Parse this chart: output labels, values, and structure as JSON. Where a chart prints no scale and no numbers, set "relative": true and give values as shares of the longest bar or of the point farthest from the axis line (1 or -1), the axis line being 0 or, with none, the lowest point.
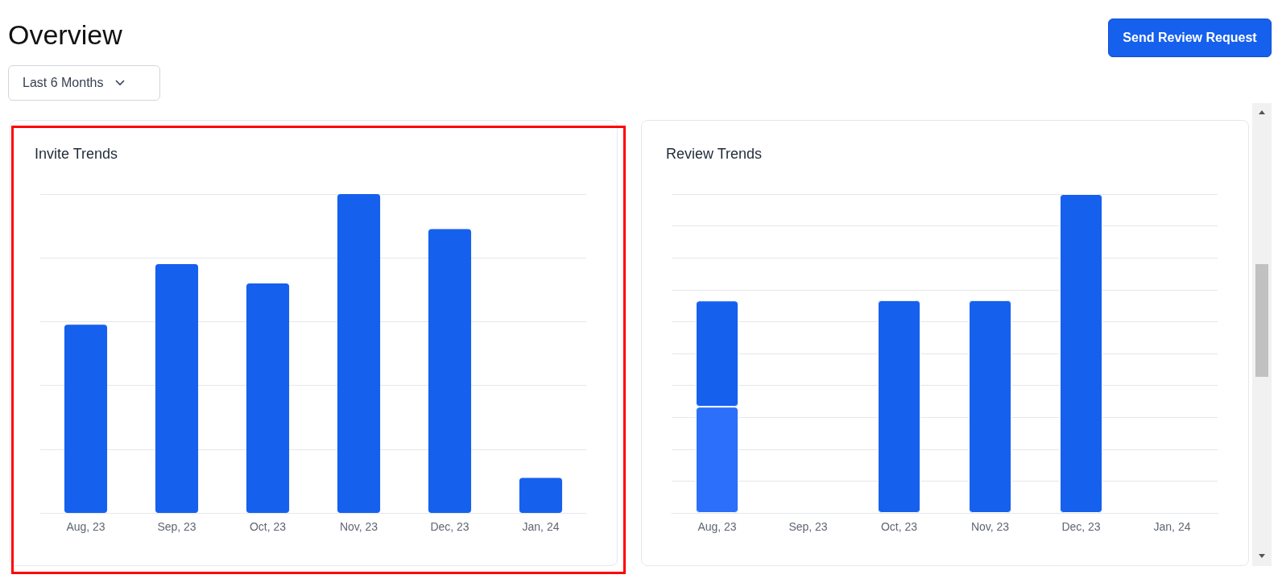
{
  "chart_data": [
    {
      "type": "other",
      "title": "Overview",
      "annotations": [
        "Last 6 Months",
        "Send Review Request"
      ]
    },
    {
      "type": "bar",
      "title": "Invite Trends",
      "categories": [
        "Aug, 23",
        "Sep, 23",
        "Oct, 23",
        "Nov, 23",
        "Dec, 23",
        "Jan, 24"
      ],
      "relative": true,
      "grid": "y",
      "series": [
        {
          "color": "#1660ee",
          "values": [
            0.59,
            0.78,
            0.72,
            1,
            0.89,
            0.11
          ]
        }
      ]
    },
    {
      "type": "bar",
      "title": "Review Trends",
      "categories": [
        "Aug, 23",
        "Sep, 23",
        "Oct, 23",
        "Nov, 23",
        "Dec, 23",
        "Jan, 24"
      ],
      "relative": true,
      "grid": "y",
      "stacked": true,
      "series": [
        {
          "color": "#2b6ffa",
          "values": [
            0.333,
            null,
            null,
            null,
            null,
            null
          ]
        },
        {
          "color": "#1660ee",
          "values": [
            0.333,
            null,
            0.667,
            0.667,
            1,
            null
          ]
        }
      ]
    }
  ]
}
